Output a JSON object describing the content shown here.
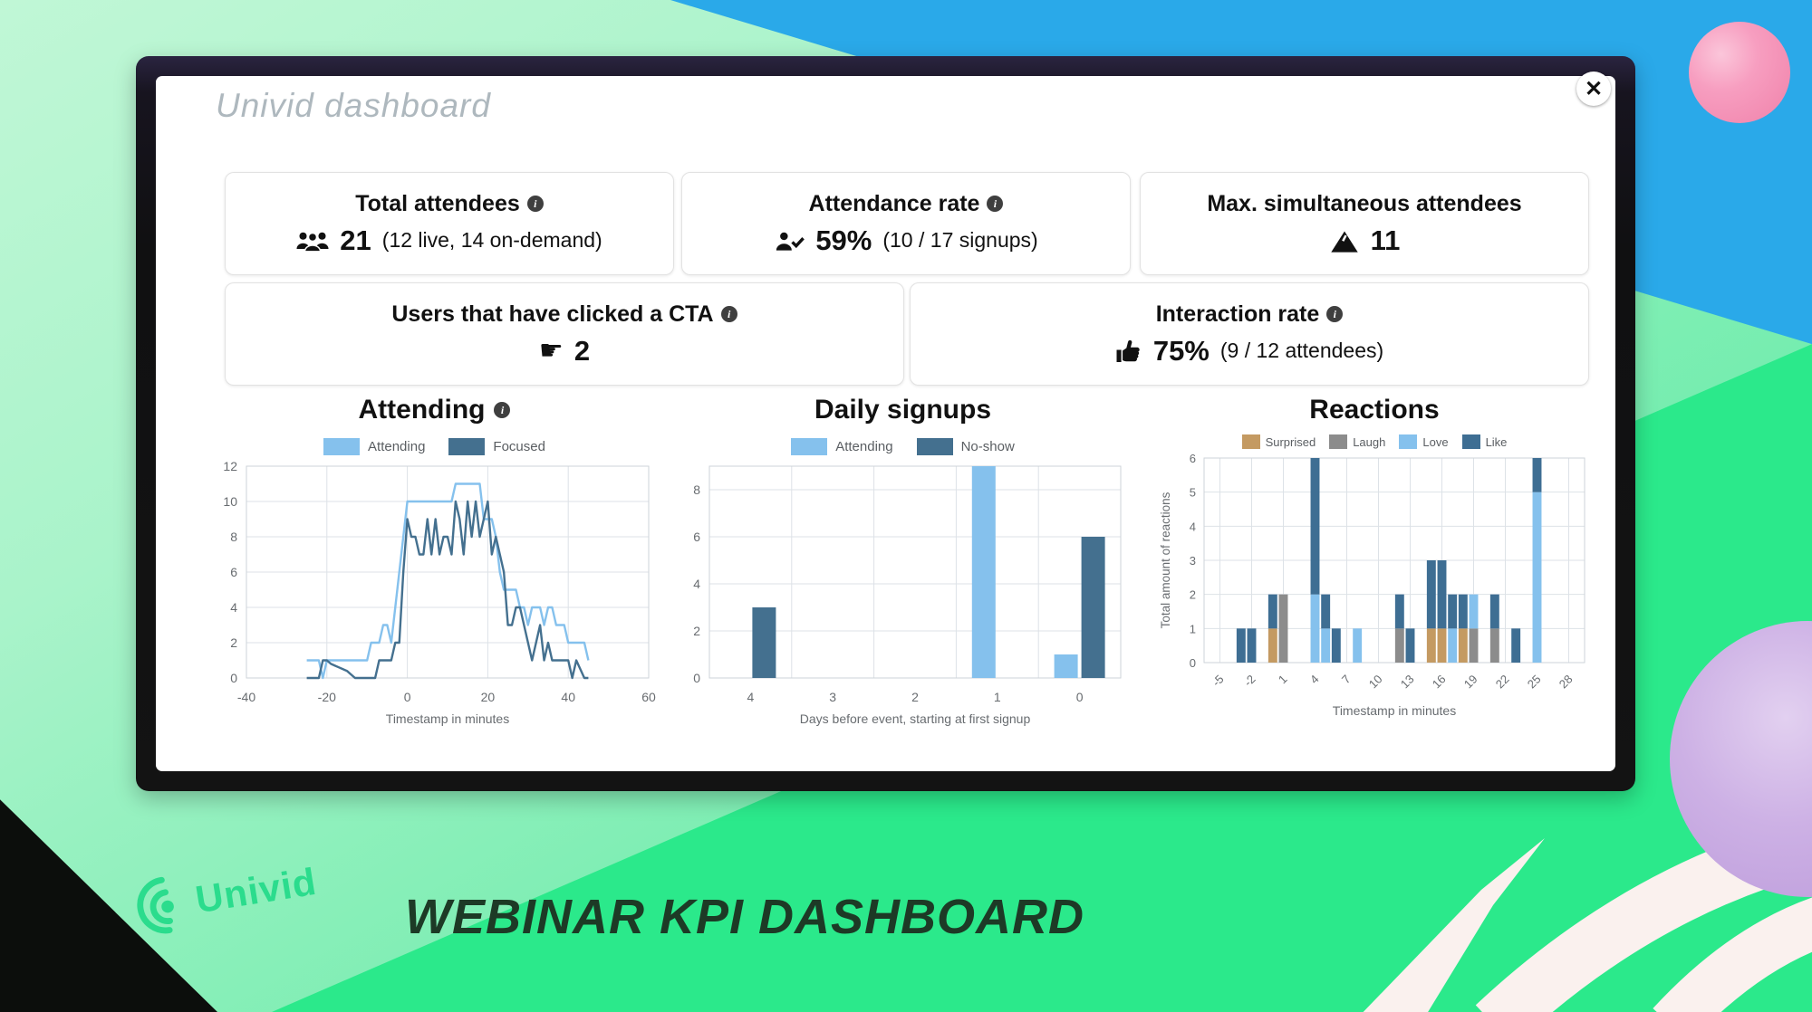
{
  "window": {
    "title": "Univid dashboard",
    "close_glyph": "✕"
  },
  "colors": {
    "accent_blue_light": "#85c1ed",
    "accent_blue_dark": "#44708f",
    "surprised": "#c49a62",
    "laugh": "#8c8c8c",
    "bg_blue": "#2aa9e9",
    "bg_green": "#2be98b",
    "brand_green": "#2bdc8d",
    "headline_green": "#1d3a26"
  },
  "kpis": [
    {
      "title": "Total attendees",
      "has_info": true,
      "icon": "people-icon",
      "value": "21",
      "detail": "(12 live, 14 on-demand)"
    },
    {
      "title": "Attendance rate",
      "has_info": true,
      "icon": "person-check-icon",
      "value": "59%",
      "detail": "(10 / 17 signups)"
    },
    {
      "title": "Max. simultaneous attendees",
      "has_info": false,
      "icon": "mountain-icon",
      "value": "11",
      "detail": ""
    },
    {
      "title": "Users that have clicked a CTA",
      "has_info": true,
      "icon": "click-icon",
      "value": "2",
      "detail": ""
    },
    {
      "title": "Interaction rate",
      "has_info": true,
      "icon": "thumbs-up-icon",
      "value": "75%",
      "detail": "(9 / 12 attendees)"
    }
  ],
  "chart_data": [
    {
      "type": "line",
      "title": "Attending",
      "has_info": true,
      "xlabel": "Timestamp in minutes",
      "xlim": [
        -40,
        60
      ],
      "ylim": [
        0,
        12
      ],
      "xticks": [
        -40,
        -20,
        0,
        20,
        40,
        60
      ],
      "yticks": [
        0,
        2,
        4,
        6,
        8,
        10,
        12
      ],
      "x_start": -25,
      "x_step": 1,
      "series": [
        {
          "name": "Attending",
          "color": "#85c1ed",
          "values": [
            1,
            1,
            1,
            1,
            0,
            1,
            1,
            1,
            1,
            1,
            1,
            1,
            1,
            1,
            1,
            1,
            2,
            2,
            2,
            3,
            3,
            2,
            4,
            6,
            8,
            10,
            10,
            10,
            10,
            10,
            10,
            10,
            10,
            10,
            10,
            10,
            10,
            11,
            11,
            11,
            11,
            11,
            11,
            11,
            9,
            9,
            9,
            8,
            6,
            5,
            5,
            5,
            5,
            4,
            4,
            3,
            4,
            4,
            4,
            3,
            4,
            4,
            3,
            3,
            3,
            2,
            2,
            2,
            2,
            2,
            1
          ]
        },
        {
          "name": "Focused",
          "color": "#44708f",
          "values": [
            0,
            0,
            0,
            0,
            1,
            1,
            0.8,
            0.7,
            0.6,
            0.5,
            0.4,
            0.2,
            0,
            0,
            0,
            0,
            0,
            0,
            1,
            1,
            1,
            1,
            2,
            2,
            6,
            9,
            8,
            8,
            7,
            7,
            9,
            7,
            9,
            7,
            8,
            8,
            7,
            10,
            9,
            7,
            10,
            8,
            10,
            8,
            9,
            10,
            7,
            8,
            7,
            6,
            3,
            3,
            4,
            4,
            3,
            2,
            1,
            2,
            3,
            1,
            2,
            1,
            1,
            1,
            1,
            1,
            0,
            1,
            0.5,
            0,
            0
          ]
        }
      ],
      "legend_position": "top",
      "grid": true
    },
    {
      "type": "grouped-bar",
      "title": "Daily signups",
      "has_info": false,
      "xlabel": "Days before event, starting at first signup",
      "categories": [
        "4",
        "3",
        "2",
        "1",
        "0"
      ],
      "ylim": [
        0,
        9
      ],
      "yticks": [
        0,
        2,
        4,
        6,
        8
      ],
      "series": [
        {
          "name": "Attending",
          "color": "#85c1ed",
          "values": [
            0,
            0,
            0,
            9,
            1
          ]
        },
        {
          "name": "No-show",
          "color": "#44708f",
          "values": [
            3,
            0,
            0,
            0,
            6
          ]
        }
      ],
      "legend_position": "top",
      "grid": true
    },
    {
      "type": "stacked-bar",
      "title": "Reactions",
      "has_info": false,
      "xlabel": "Timestamp in minutes",
      "ylabel": "Total amount of reactions",
      "xlim": [
        -6.5,
        29.5
      ],
      "ylim": [
        0,
        6
      ],
      "xticks": [
        -5,
        -2,
        1,
        4,
        7,
        10,
        13,
        16,
        19,
        22,
        25,
        28
      ],
      "yticks": [
        0,
        1,
        2,
        3,
        4,
        5,
        6
      ],
      "series": [
        {
          "name": "Surprised",
          "color": "#c49a62"
        },
        {
          "name": "Laugh",
          "color": "#8c8c8c"
        },
        {
          "name": "Love",
          "color": "#85c1ed"
        },
        {
          "name": "Like",
          "color": "#3e6e93"
        }
      ],
      "bars": [
        {
          "x": -3,
          "values": [
            0,
            0,
            0,
            1
          ]
        },
        {
          "x": -2,
          "values": [
            0,
            0,
            0,
            1
          ]
        },
        {
          "x": 0,
          "values": [
            1,
            0,
            0,
            1
          ]
        },
        {
          "x": 1,
          "values": [
            0,
            2,
            0,
            0
          ]
        },
        {
          "x": 4,
          "values": [
            0,
            0,
            2,
            4
          ]
        },
        {
          "x": 5,
          "values": [
            0,
            0,
            1,
            1
          ]
        },
        {
          "x": 6,
          "values": [
            0,
            0,
            0,
            1
          ]
        },
        {
          "x": 8,
          "values": [
            0,
            0,
            1,
            0
          ]
        },
        {
          "x": 12,
          "values": [
            0,
            1,
            0,
            1
          ]
        },
        {
          "x": 13,
          "values": [
            0,
            0,
            0,
            1
          ]
        },
        {
          "x": 15,
          "values": [
            1,
            0,
            0,
            2
          ]
        },
        {
          "x": 16,
          "values": [
            1,
            0,
            0,
            2
          ]
        },
        {
          "x": 17,
          "values": [
            0,
            0,
            1,
            1
          ]
        },
        {
          "x": 18,
          "values": [
            1,
            0,
            0,
            1
          ]
        },
        {
          "x": 19,
          "values": [
            0,
            1,
            1,
            0
          ]
        },
        {
          "x": 21,
          "values": [
            0,
            1,
            0,
            1
          ]
        },
        {
          "x": 23,
          "values": [
            0,
            0,
            0,
            1
          ]
        },
        {
          "x": 25,
          "values": [
            0,
            0,
            5,
            1
          ]
        }
      ],
      "legend_position": "top",
      "grid": true
    }
  ],
  "footer": {
    "brand": "Univid",
    "headline": "WEBINAR KPI DASHBOARD"
  }
}
